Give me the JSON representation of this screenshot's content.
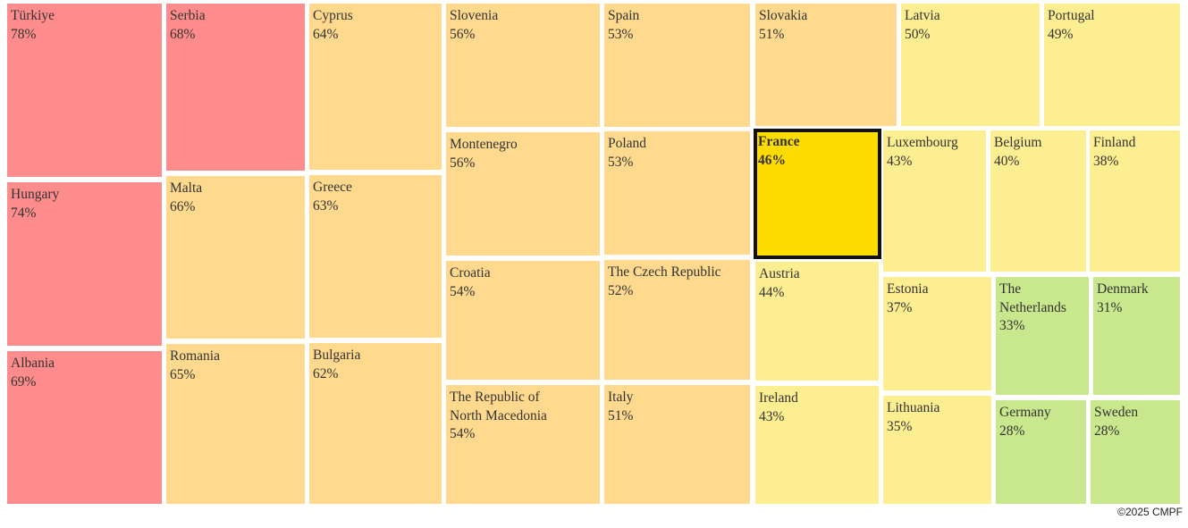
{
  "chart_data": {
    "type": "treemap",
    "value_format": "percent",
    "colors": {
      "red": "#ff8c8c",
      "orange": "#fed98e",
      "yellow": "#fdee92",
      "green": "#c9e78d",
      "highlight": "#ffdc00",
      "highlight_border": "#111111"
    },
    "items": [
      {
        "name": "Türkiye",
        "value": 78,
        "color": "red"
      },
      {
        "name": "Hungary",
        "value": 74,
        "color": "red"
      },
      {
        "name": "Albania",
        "value": 69,
        "color": "red"
      },
      {
        "name": "Serbia",
        "value": 68,
        "color": "red"
      },
      {
        "name": "Malta",
        "value": 66,
        "color": "orange"
      },
      {
        "name": "Romania",
        "value": 65,
        "color": "orange"
      },
      {
        "name": "Cyprus",
        "value": 64,
        "color": "orange"
      },
      {
        "name": "Greece",
        "value": 63,
        "color": "orange"
      },
      {
        "name": "Bulgaria",
        "value": 62,
        "color": "orange"
      },
      {
        "name": "Slovenia",
        "value": 56,
        "color": "orange"
      },
      {
        "name": "Montenegro",
        "value": 56,
        "color": "orange"
      },
      {
        "name": "Croatia",
        "value": 54,
        "color": "orange"
      },
      {
        "name": "The Republic of North Macedonia",
        "display_name": "The Republic of\nNorth Macedonia",
        "value": 54,
        "color": "orange"
      },
      {
        "name": "Spain",
        "value": 53,
        "color": "orange"
      },
      {
        "name": "Poland",
        "value": 53,
        "color": "orange"
      },
      {
        "name": "The Czech Republic",
        "value": 52,
        "color": "orange"
      },
      {
        "name": "Italy",
        "value": 51,
        "color": "orange"
      },
      {
        "name": "Slovakia",
        "value": 51,
        "color": "orange"
      },
      {
        "name": "France",
        "value": 46,
        "color": "highlight",
        "highlighted": true
      },
      {
        "name": "Austria",
        "value": 44,
        "color": "yellow"
      },
      {
        "name": "Ireland",
        "value": 43,
        "color": "yellow"
      },
      {
        "name": "Latvia",
        "value": 50,
        "color": "yellow"
      },
      {
        "name": "Portugal",
        "value": 49,
        "color": "yellow"
      },
      {
        "name": "Luxembourg",
        "value": 43,
        "color": "yellow"
      },
      {
        "name": "Belgium",
        "value": 40,
        "color": "yellow"
      },
      {
        "name": "Finland",
        "value": 38,
        "color": "yellow"
      },
      {
        "name": "Estonia",
        "value": 37,
        "color": "yellow"
      },
      {
        "name": "Lithuania",
        "value": 35,
        "color": "yellow"
      },
      {
        "name": "The Netherlands",
        "display_name": "The\nNetherlands",
        "value": 33,
        "color": "green"
      },
      {
        "name": "Denmark",
        "value": 31,
        "color": "green"
      },
      {
        "name": "Germany",
        "value": 28,
        "color": "green"
      },
      {
        "name": "Sweden",
        "value": 28,
        "color": "green"
      }
    ]
  },
  "footer": {
    "copyright": "©2025 CMPF"
  }
}
